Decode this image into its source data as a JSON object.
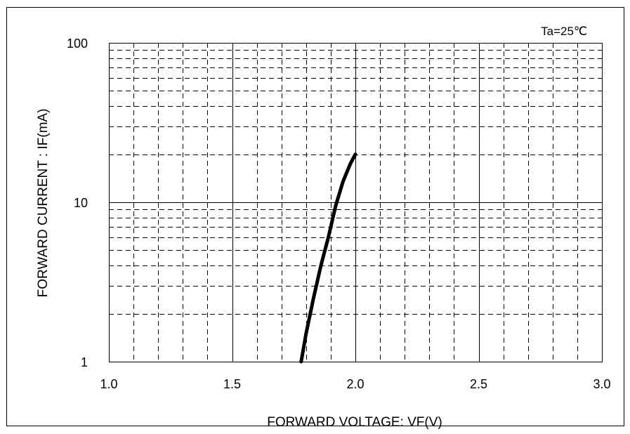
{
  "chart_data": {
    "type": "line",
    "annotation": "Ta=25℃",
    "xlabel": "FORWARD VOLTAGE: VF(V)",
    "ylabel": "FORWARD CURRENT : IF(mA)",
    "x_scale": "linear",
    "y_scale": "log",
    "xlim": [
      1.0,
      3.0
    ],
    "ylim": [
      1,
      100
    ],
    "x_ticks": [
      "1.0",
      "1.5",
      "2.0",
      "2.5",
      "3.0"
    ],
    "y_ticks": [
      "1",
      "10",
      "100"
    ],
    "grid": true,
    "series": [
      {
        "x": [
          1.78,
          1.8,
          1.83,
          1.86,
          1.89,
          1.92,
          1.95,
          1.98,
          2.0
        ],
        "y": [
          1.0,
          1.5,
          2.5,
          4.0,
          6.0,
          9.5,
          13.5,
          17.5,
          20.0
        ]
      }
    ]
  },
  "colors": {
    "line": "#000000",
    "grid": "#000000",
    "background": "#ffffff"
  }
}
